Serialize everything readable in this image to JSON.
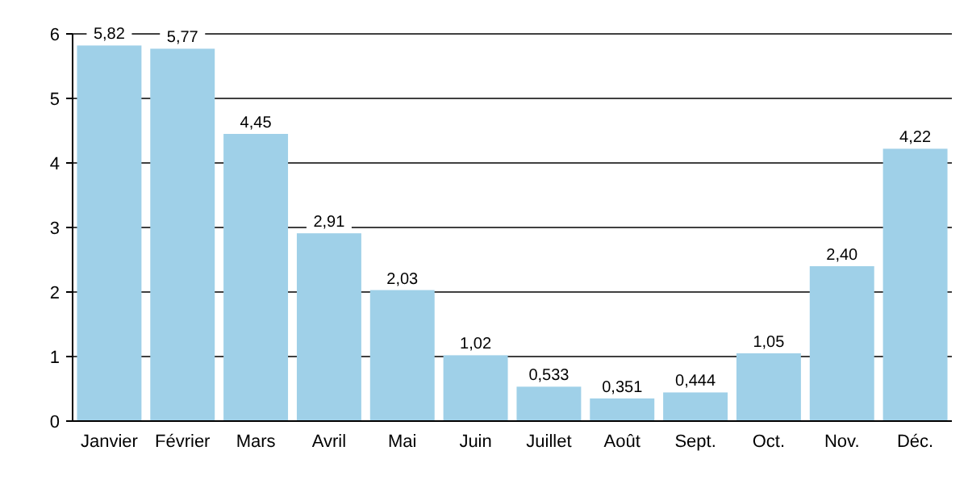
{
  "chart_data": {
    "type": "bar",
    "categories": [
      "Janvier",
      "Février",
      "Mars",
      "Avril",
      "Mai",
      "Juin",
      "Juillet",
      "Août",
      "Sept.",
      "Oct.",
      "Nov.",
      "Déc."
    ],
    "values": [
      5.82,
      5.77,
      4.45,
      2.91,
      2.03,
      1.02,
      0.533,
      0.351,
      0.444,
      1.05,
      2.4,
      4.22
    ],
    "value_labels": [
      "5,82",
      "5,77",
      "4,45",
      "2,91",
      "2,03",
      "1,02",
      "0,533",
      "0,351",
      "0,444",
      "1,05",
      "2,40",
      "4,22"
    ],
    "color": "#9fd0e8",
    "ylim": [
      0,
      6
    ],
    "yticks": [
      0,
      1,
      2,
      3,
      4,
      5,
      6
    ],
    "grid": "y"
  }
}
